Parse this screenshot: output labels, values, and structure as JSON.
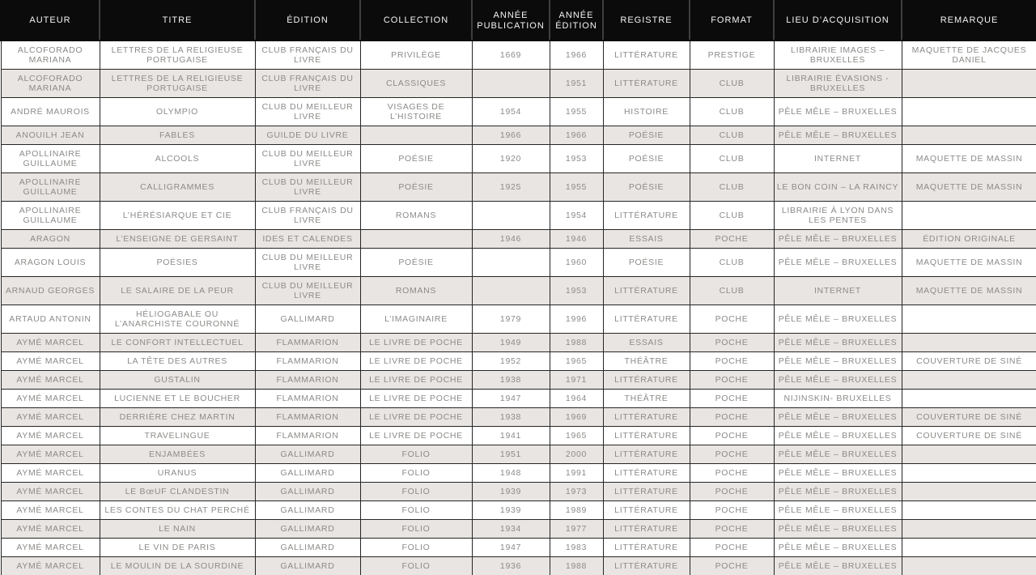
{
  "colors": {
    "header_bg": "#0b0b0b",
    "header_text": "#f4f4f4",
    "row_bg": "#ffffff",
    "row_alt_bg": "#e8e5e2",
    "cell_text": "#8d8b88",
    "border": "#262626"
  },
  "table": {
    "columns": [
      {
        "key": "auteur",
        "label": "AUTEUR"
      },
      {
        "key": "titre",
        "label": "TITRE"
      },
      {
        "key": "edition",
        "label": "ÉDITION"
      },
      {
        "key": "collection",
        "label": "COLLECTION"
      },
      {
        "key": "annee_publication",
        "label": "ANNÉE PUBLICATION"
      },
      {
        "key": "annee_edition",
        "label": "ANNÉE ÉDITION"
      },
      {
        "key": "registre",
        "label": "REGISTRE"
      },
      {
        "key": "format",
        "label": "FORMAT"
      },
      {
        "key": "lieu_acquisition",
        "label": "LIEU D’ACQUISITION"
      },
      {
        "key": "remarque",
        "label": "REMARQUE"
      }
    ],
    "rows": [
      [
        "ALCOFORADO MARIANA",
        "LETTRES DE LA RELIGIEUSE PORTUGAISE",
        "CLUB FRANÇAIS DU LIVRE",
        "PRIVILÈGE",
        "1669",
        "1966",
        "LITTÉRATURE",
        "PRESTIGE",
        "LIBRAIRIE IMAGES – BRUXELLES",
        "MAQUETTE DE JACQUES DANIEL"
      ],
      [
        "ALCOFORADO MARIANA",
        "LETTRES DE LA RELIGIEUSE PORTUGAISE",
        "CLUB FRANÇAIS DU LIVRE",
        "CLASSIQUES",
        "",
        "1951",
        "LITTÉRATURE",
        "CLUB",
        "LIBRAIRIE ÉVASIONS - BRUXELLES",
        ""
      ],
      [
        "ANDRÉ MAUROIS",
        "OLYMPIO",
        "CLUB DU MEILLEUR LIVRE",
        "VISAGES DE L’HISTOIRE",
        "1954",
        "1955",
        "HISTOIRE",
        "CLUB",
        "PÊLE MÊLE – BRUXELLES",
        ""
      ],
      [
        "ANOUILH JEAN",
        "FABLES",
        "GUILDE DU LIVRE",
        "",
        "1966",
        "1966",
        "POÉSIE",
        "CLUB",
        "PÊLE MÊLE – BRUXELLES",
        ""
      ],
      [
        "APOLLINAIRE GUILLAUME",
        "ALCOOLS",
        "CLUB DU MEILLEUR LIVRE",
        "POÉSIE",
        "1920",
        "1953",
        "POÉSIE",
        "CLUB",
        "INTERNET",
        "MAQUETTE DE MASSIN"
      ],
      [
        "APOLLINAIRE GUILLAUME",
        "CALLIGRAMMES",
        "CLUB DU MEILLEUR LIVRE",
        "POÉSIE",
        "1925",
        "1955",
        "POÉSIE",
        "CLUB",
        "LE BON COIN – LA RAINCY",
        "MAQUETTE DE MASSIN"
      ],
      [
        "APOLLINAIRE GUILLAUME",
        "L’HÉRÉSIARQUE ET CIE",
        "CLUB FRANÇAIS DU LIVRE",
        "ROMANS",
        "",
        "1954",
        "LITTÉRATURE",
        "CLUB",
        "LIBRAIRIE À LYON DANS LES PENTES",
        ""
      ],
      [
        "ARAGON",
        "L’ENSEIGNE DE GERSAINT",
        "IDES ET CALENDES",
        "",
        "1946",
        "1946",
        "ESSAIS",
        "POCHE",
        "PÊLE MÊLE – BRUXELLES",
        "ÉDITION ORIGINALE"
      ],
      [
        "ARAGON LOUIS",
        "POÉSIES",
        "CLUB DU MEILLEUR LIVRE",
        "POÉSIE",
        "",
        "1960",
        "POÉSIE",
        "CLUB",
        "PÊLE MÊLE – BRUXELLES",
        "MAQUETTE DE MASSIN"
      ],
      [
        "ARNAUD GEORGES",
        "LE SALAIRE DE LA PEUR",
        "CLUB DU MEILLEUR LIVRE",
        "ROMANS",
        "",
        "1953",
        "LITTÉRATURE",
        "CLUB",
        "INTERNET",
        "MAQUETTE DE MASSIN"
      ],
      [
        "ARTAUD ANTONIN",
        "HÉLIOGABALE OU L’ANARCHISTE COURONNÉ",
        "GALLIMARD",
        "L’IMAGINAIRE",
        "1979",
        "1996",
        "LITTÉRATURE",
        "POCHE",
        "PÊLE MÊLE – BRUXELLES",
        ""
      ],
      [
        "AYMÉ MARCEL",
        "LE CONFORT INTELLECTUEL",
        "FLAMMARION",
        "LE LIVRE DE POCHE",
        "1949",
        "1988",
        "ESSAIS",
        "POCHE",
        "PÊLE MÊLE – BRUXELLES",
        ""
      ],
      [
        "AYMÉ MARCEL",
        "LA TÊTE DES AUTRES",
        "FLAMMARION",
        "LE LIVRE DE POCHE",
        "1952",
        "1965",
        "THÉÂTRE",
        "POCHE",
        "PÊLE MÊLE – BRUXELLES",
        "COUVERTURE DE SINÉ"
      ],
      [
        "AYMÉ MARCEL",
        "GUSTALIN",
        "FLAMMARION",
        "LE LIVRE DE POCHE",
        "1938",
        "1971",
        "LITTÉRATURE",
        "POCHE",
        "PÊLE MÊLE – BRUXELLES",
        ""
      ],
      [
        "AYMÉ MARCEL",
        "LUCIENNE ET LE BOUCHER",
        "FLAMMARION",
        "LE LIVRE DE POCHE",
        "1947",
        "1964",
        "THÉÂTRE",
        "POCHE",
        "NIJINSKIN- BRUXELLES",
        ""
      ],
      [
        "AYMÉ MARCEL",
        "DERRIÈRE CHEZ MARTIN",
        "FLAMMARION",
        "LE LIVRE DE POCHE",
        "1938",
        "1969",
        "LITTÉRATURE",
        "POCHE",
        "PÊLE MÊLE – BRUXELLES",
        "COUVERTURE DE SINÉ"
      ],
      [
        "AYMÉ MARCEL",
        "TRAVELINGUE",
        "FLAMMARION",
        "LE LIVRE DE POCHE",
        "1941",
        "1965",
        "LITTÉRATURE",
        "POCHE",
        "PÊLE MÊLE – BRUXELLES",
        "COUVERTURE DE SINÉ"
      ],
      [
        "AYMÉ MARCEL",
        "ENJAMBÉES",
        "GALLIMARD",
        "FOLIO",
        "1951",
        "2000",
        "LITTÉRATURE",
        "POCHE",
        "PÊLE MÊLE – BRUXELLES",
        ""
      ],
      [
        "AYMÉ MARCEL",
        "URANUS",
        "GALLIMARD",
        "FOLIO",
        "1948",
        "1991",
        "LITTÉRATURE",
        "POCHE",
        "PÊLE MÊLE – BRUXELLES",
        ""
      ],
      [
        "AYMÉ MARCEL",
        "LE BœUF CLANDESTIN",
        "GALLIMARD",
        "FOLIO",
        "1939",
        "1973",
        "LITTÉRATURE",
        "POCHE",
        "PÊLE MÊLE – BRUXELLES",
        ""
      ],
      [
        "AYMÉ MARCEL",
        "LES CONTES DU CHAT PERCHÉ",
        "GALLIMARD",
        "FOLIO",
        "1939",
        "1989",
        "LITTÉRATURE",
        "POCHE",
        "PÊLE MÊLE – BRUXELLES",
        ""
      ],
      [
        "AYMÉ MARCEL",
        "LE NAIN",
        "GALLIMARD",
        "FOLIO",
        "1934",
        "1977",
        "LITTÉRATURE",
        "POCHE",
        "PÊLE MÊLE – BRUXELLES",
        ""
      ],
      [
        "AYMÉ MARCEL",
        "LE VIN DE PARIS",
        "GALLIMARD",
        "FOLIO",
        "1947",
        "1983",
        "LITTÉRATURE",
        "POCHE",
        "PÊLE MÊLE – BRUXELLES",
        ""
      ],
      [
        "AYMÉ MARCEL",
        "LE MOULIN DE LA SOURDINE",
        "GALLIMARD",
        "FOLIO",
        "1936",
        "1988",
        "LITTÉRATURE",
        "POCHE",
        "PÊLE MÊLE – BRUXELLES",
        ""
      ]
    ]
  }
}
